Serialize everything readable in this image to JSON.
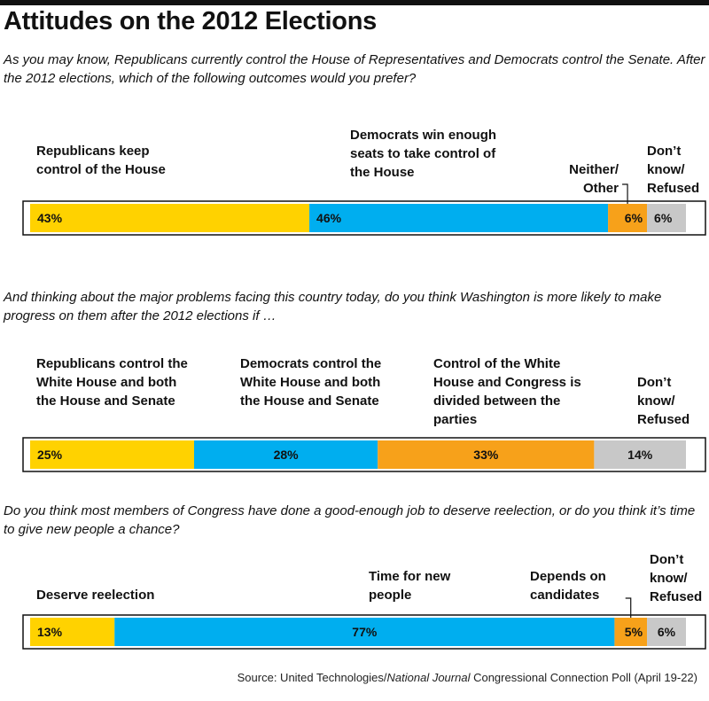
{
  "title": "Attitudes on the 2012 Elections",
  "source": {
    "prefix": "Source: United Technologies/",
    "italic": "National Journal",
    "suffix": " Congressional Connection Poll (April 19-22)"
  },
  "colors": {
    "yellow": "#FFD200",
    "blue": "#00AEEF",
    "orange": "#F7A11A",
    "gray": "#C8C8C8",
    "text": "#111111"
  },
  "chart_data": [
    {
      "type": "bar",
      "stacked": true,
      "orientation": "horizontal",
      "question": "As you may know, Republicans currently control the House of Representatives and Democrats control the Senate. After the 2012 elections, which of the following outcomes would you prefer?",
      "categories": [
        "Republicans keep control of the House",
        "Democrats win enough seats to take control of the House",
        "Neither/ Other",
        "Don’t know/ Refused"
      ],
      "values": [
        43,
        46,
        6,
        6
      ],
      "value_labels": [
        "43%",
        "46%",
        "6%",
        "6%"
      ],
      "colors": [
        "#FFD200",
        "#00AEEF",
        "#F7A11A",
        "#C8C8C8"
      ]
    },
    {
      "type": "bar",
      "stacked": true,
      "orientation": "horizontal",
      "question": "And thinking about the major problems facing this country today, do you think Washington is more likely to make progress on them after the 2012 elections if …",
      "categories": [
        "Republicans control the White House and both the House and Senate",
        "Democrats control the White House and both the House and Senate",
        "Control of the White House and Congress is divided between the parties",
        "Don’t know/ Refused"
      ],
      "values": [
        25,
        28,
        33,
        14
      ],
      "value_labels": [
        "25%",
        "28%",
        "33%",
        "14%"
      ],
      "colors": [
        "#FFD200",
        "#00AEEF",
        "#F7A11A",
        "#C8C8C8"
      ]
    },
    {
      "type": "bar",
      "stacked": true,
      "orientation": "horizontal",
      "question": "Do you think most members of Congress have done a good-enough job to deserve reelection, or do you think it’s time to give new people a chance?",
      "categories": [
        "Deserve reelection",
        "Time for new people",
        "Depends on candidates",
        "Don’t know/ Refused"
      ],
      "values": [
        13,
        77,
        5,
        6
      ],
      "value_labels": [
        "13%",
        "77%",
        "5%",
        "6%"
      ],
      "colors": [
        "#FFD200",
        "#00AEEF",
        "#F7A11A",
        "#C8C8C8"
      ]
    }
  ]
}
